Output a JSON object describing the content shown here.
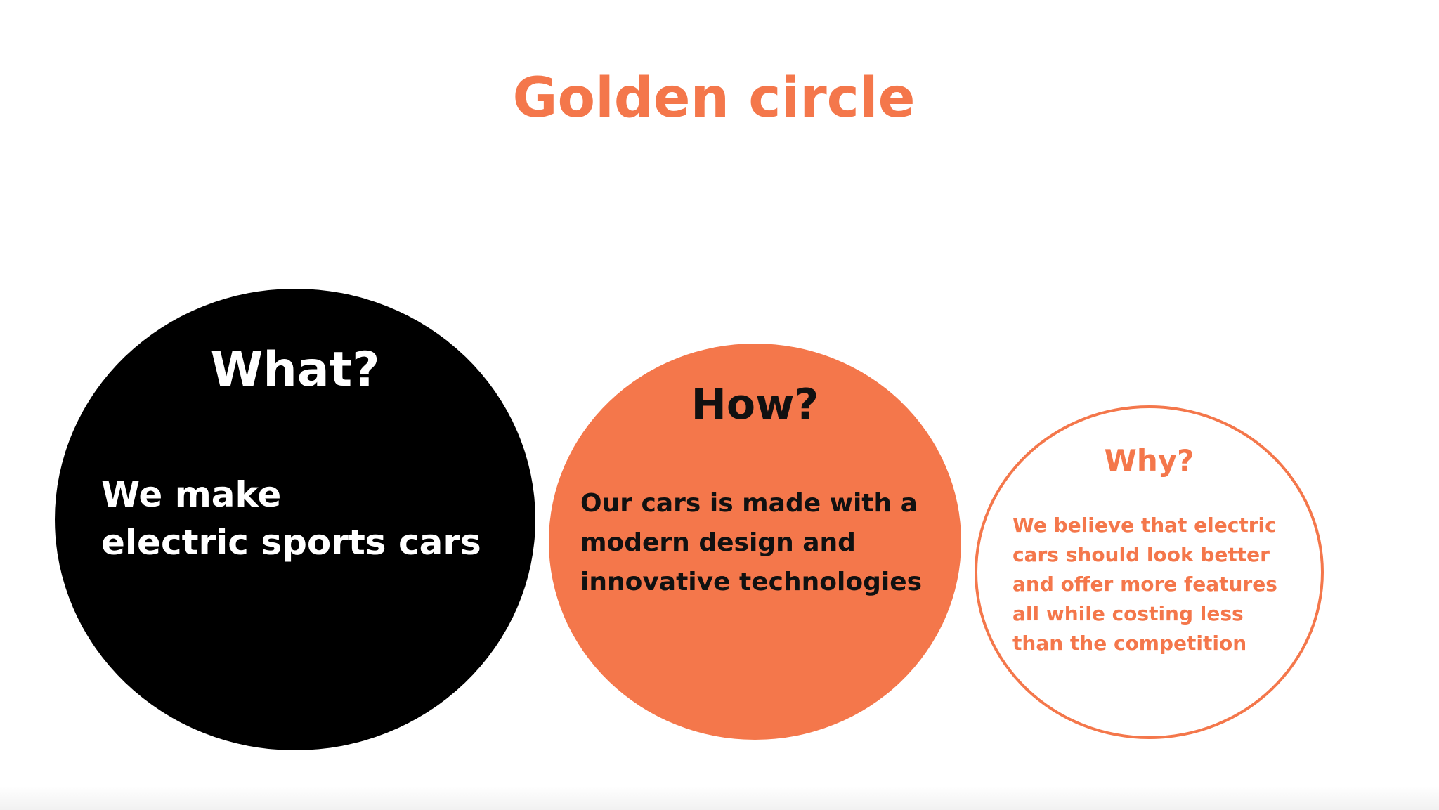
{
  "title": "Golden circle",
  "colors": {
    "accent": "#f4774b",
    "dark": "#000000",
    "background": "#ffffff"
  },
  "circles": [
    {
      "heading": "What?",
      "text": "We make\nelectric sports cars"
    },
    {
      "heading": "How?",
      "text": "Our cars is made with a modern design and innovative technologies"
    },
    {
      "heading": "Why?",
      "text": "We believe that electric cars should look better and offer more features all while costing less than the competition"
    }
  ]
}
